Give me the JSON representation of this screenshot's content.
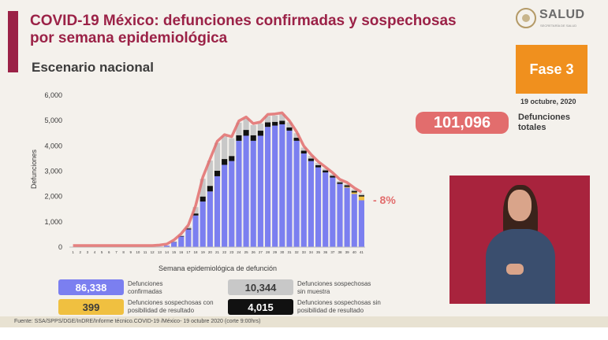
{
  "header": {
    "title": "COVID-19 México: defunciones confirmadas y sospechosas por semana epidemiológica",
    "subtitle": "Escenario nacional"
  },
  "logo": {
    "name": "SALUD",
    "subtext": "SECRETARÍA DE SALUD"
  },
  "phase": {
    "label": "Fase 3",
    "date": "19 octubre, 2020"
  },
  "totals": {
    "value": "101,096",
    "label": "Defunciones totales"
  },
  "change_label": "- 8%",
  "legend": [
    {
      "value": "86,338",
      "label": "Defunciones confirmadas",
      "color": "#7b7ff0",
      "text_color": "#ffffff"
    },
    {
      "value": "10,344",
      "label": "Defunciones sospechosas sin muestra",
      "color": "#c8c8c8",
      "text_color": "#3a3a3a"
    },
    {
      "value": "399",
      "label": "Defunciones sospechosas con posibilidad de resultado",
      "color": "#f0c040",
      "text_color": "#3a3a3a"
    },
    {
      "value": "4,015",
      "label": "Defunciones sospechosas sin posibilidad de resultado",
      "color": "#111111",
      "text_color": "#ffffff"
    }
  ],
  "footer": {
    "source": "Fuente: SSA/SPPS/DGE/InDRE/Informe técnico.COVID-19 /México- 19 octubre 2020 (corte 9:00hrs)"
  },
  "colors": {
    "title": "#9b2247",
    "confirmed": "#7b7ff0",
    "no_sample": "#c8c8c8",
    "possible_result": "#f0c040",
    "no_result": "#111111",
    "trend_line": "#e26d6d"
  },
  "chart_data": {
    "type": "bar",
    "stacked": true,
    "xlabel": "Semana epidemiológica de defunción",
    "ylabel": "Defunciones",
    "ylim": [
      0,
      6000
    ],
    "yticks": [
      "0",
      "1,000",
      "2,000",
      "3,000",
      "4,000",
      "5,000",
      "6,000"
    ],
    "grid": false,
    "categories": [
      "1",
      "2",
      "3",
      "4",
      "5",
      "6",
      "7",
      "8",
      "9",
      "10",
      "11",
      "12",
      "13",
      "14",
      "15",
      "16",
      "17",
      "18",
      "19",
      "20",
      "21",
      "22",
      "23",
      "24",
      "25",
      "26",
      "27",
      "28",
      "29",
      "30",
      "31",
      "32",
      "33",
      "34",
      "35",
      "36",
      "37",
      "38",
      "39",
      "40",
      "41"
    ],
    "series": [
      {
        "name": "Defunciones confirmadas",
        "values": [
          0,
          0,
          0,
          0,
          0,
          0,
          0,
          0,
          0,
          0,
          0,
          0,
          20,
          60,
          200,
          420,
          700,
          1250,
          1800,
          2200,
          2800,
          3250,
          3400,
          4200,
          4400,
          4200,
          4400,
          4750,
          4800,
          4850,
          4600,
          4200,
          3700,
          3400,
          3150,
          2950,
          2750,
          2500,
          2350,
          2100,
          1850
        ]
      },
      {
        "name": "Defunciones sospechosas sin muestra",
        "values": [
          0,
          0,
          0,
          0,
          0,
          0,
          0,
          0,
          0,
          0,
          0,
          0,
          0,
          0,
          10,
          30,
          70,
          250,
          700,
          1000,
          1100,
          900,
          700,
          500,
          450,
          400,
          280,
          250,
          250,
          250,
          200,
          180,
          120,
          100,
          80,
          70,
          60,
          50,
          50,
          60,
          60
        ]
      },
      {
        "name": "Defunciones sospechosas con posibilidad de resultado",
        "values": [
          0,
          0,
          0,
          0,
          0,
          0,
          0,
          0,
          0,
          0,
          0,
          0,
          0,
          0,
          0,
          0,
          0,
          0,
          0,
          0,
          0,
          0,
          0,
          0,
          0,
          0,
          0,
          0,
          0,
          0,
          0,
          0,
          0,
          0,
          0,
          0,
          0,
          0,
          30,
          60,
          150
        ]
      },
      {
        "name": "Defunciones sospechosas sin posibilidad de resultado",
        "values": [
          0,
          0,
          0,
          0,
          0,
          0,
          0,
          0,
          0,
          0,
          0,
          0,
          0,
          0,
          10,
          20,
          40,
          80,
          200,
          220,
          220,
          230,
          200,
          220,
          230,
          220,
          200,
          180,
          150,
          140,
          130,
          120,
          110,
          100,
          90,
          80,
          70,
          60,
          60,
          60,
          50
        ]
      }
    ]
  }
}
